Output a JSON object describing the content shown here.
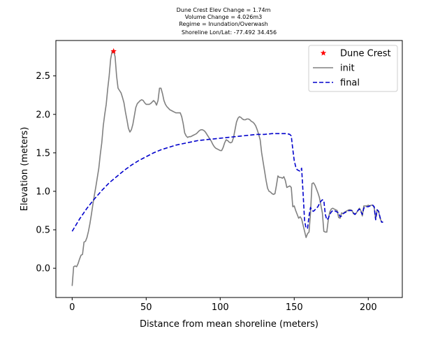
{
  "chart_data": {
    "type": "line",
    "title_lines": [
      "Dune Crest Elev Change = 1.74m",
      "Volume Change = 4.026m3",
      "Regime = Inundation/Overwash",
      "Shoreline Lon/Lat: -77.492 34.456"
    ],
    "xlabel": "Distance from mean shoreline (meters)",
    "ylabel": "Elevation (meters)",
    "xlim": [
      -11,
      223
    ],
    "ylim": [
      -0.38,
      2.96
    ],
    "x_ticks": [
      0,
      50,
      100,
      150,
      200
    ],
    "y_ticks": [
      0.0,
      0.5,
      1.0,
      1.5,
      2.0,
      2.5
    ],
    "x_tick_labels": [
      "0",
      "50",
      "100",
      "150",
      "200"
    ],
    "y_tick_labels": [
      "0.0",
      "0.5",
      "1.0",
      "1.5",
      "2.0",
      "2.5"
    ],
    "grid": false,
    "legend_position": "top-right",
    "series": [
      {
        "name": "Dune Crest",
        "style": "marker",
        "color": "#ff0000",
        "marker": "star",
        "points": [
          [
            28,
            2.82
          ]
        ]
      },
      {
        "name": "init",
        "style": "solid",
        "color": "#808080",
        "points": [
          [
            0,
            -0.23
          ],
          [
            1,
            0.02
          ],
          [
            2,
            0.03
          ],
          [
            3,
            0.02
          ],
          [
            4,
            0.06
          ],
          [
            5,
            0.12
          ],
          [
            6,
            0.17
          ],
          [
            7,
            0.18
          ],
          [
            8,
            0.34
          ],
          [
            9,
            0.35
          ],
          [
            10,
            0.4
          ],
          [
            11,
            0.48
          ],
          [
            12,
            0.58
          ],
          [
            13,
            0.7
          ],
          [
            14,
            0.83
          ],
          [
            15,
            0.95
          ],
          [
            16,
            1.06
          ],
          [
            17,
            1.18
          ],
          [
            18,
            1.3
          ],
          [
            19,
            1.48
          ],
          [
            20,
            1.63
          ],
          [
            21,
            1.85
          ],
          [
            22,
            2.0
          ],
          [
            23,
            2.13
          ],
          [
            24,
            2.33
          ],
          [
            25,
            2.5
          ],
          [
            26,
            2.72
          ],
          [
            27,
            2.82
          ],
          [
            28,
            2.82
          ],
          [
            29,
            2.75
          ],
          [
            30,
            2.5
          ],
          [
            31,
            2.34
          ],
          [
            32,
            2.31
          ],
          [
            33,
            2.28
          ],
          [
            34,
            2.22
          ],
          [
            35,
            2.15
          ],
          [
            36,
            2.03
          ],
          [
            37,
            1.93
          ],
          [
            38,
            1.82
          ],
          [
            39,
            1.77
          ],
          [
            40,
            1.8
          ],
          [
            41,
            1.87
          ],
          [
            42,
            1.98
          ],
          [
            43,
            2.09
          ],
          [
            44,
            2.14
          ],
          [
            45,
            2.16
          ],
          [
            46,
            2.18
          ],
          [
            47,
            2.19
          ],
          [
            48,
            2.18
          ],
          [
            49,
            2.15
          ],
          [
            50,
            2.13
          ],
          [
            51,
            2.13
          ],
          [
            52,
            2.13
          ],
          [
            53,
            2.14
          ],
          [
            54,
            2.16
          ],
          [
            55,
            2.18
          ],
          [
            56,
            2.16
          ],
          [
            57,
            2.12
          ],
          [
            58,
            2.18
          ],
          [
            59,
            2.34
          ],
          [
            60,
            2.34
          ],
          [
            61,
            2.27
          ],
          [
            62,
            2.18
          ],
          [
            63,
            2.13
          ],
          [
            64,
            2.1
          ],
          [
            65,
            2.08
          ],
          [
            66,
            2.06
          ],
          [
            67,
            2.05
          ],
          [
            68,
            2.04
          ],
          [
            69,
            2.03
          ],
          [
            70,
            2.02
          ],
          [
            71,
            2.02
          ],
          [
            72,
            2.02
          ],
          [
            73,
            2.02
          ],
          [
            74,
            1.97
          ],
          [
            75,
            1.88
          ],
          [
            76,
            1.76
          ],
          [
            77,
            1.72
          ],
          [
            78,
            1.7
          ],
          [
            79,
            1.71
          ],
          [
            80,
            1.71
          ],
          [
            81,
            1.72
          ],
          [
            82,
            1.73
          ],
          [
            83,
            1.74
          ],
          [
            84,
            1.75
          ],
          [
            85,
            1.77
          ],
          [
            86,
            1.79
          ],
          [
            87,
            1.8
          ],
          [
            88,
            1.8
          ],
          [
            89,
            1.79
          ],
          [
            90,
            1.77
          ],
          [
            91,
            1.74
          ],
          [
            92,
            1.71
          ],
          [
            93,
            1.68
          ],
          [
            94,
            1.65
          ],
          [
            95,
            1.61
          ],
          [
            96,
            1.58
          ],
          [
            97,
            1.56
          ],
          [
            98,
            1.55
          ],
          [
            99,
            1.54
          ],
          [
            100,
            1.53
          ],
          [
            101,
            1.53
          ],
          [
            102,
            1.57
          ],
          [
            103,
            1.63
          ],
          [
            104,
            1.67
          ],
          [
            105,
            1.66
          ],
          [
            106,
            1.64
          ],
          [
            107,
            1.63
          ],
          [
            108,
            1.64
          ],
          [
            109,
            1.7
          ],
          [
            110,
            1.8
          ],
          [
            111,
            1.9
          ],
          [
            112,
            1.95
          ],
          [
            113,
            1.97
          ],
          [
            114,
            1.96
          ],
          [
            115,
            1.94
          ],
          [
            116,
            1.93
          ],
          [
            117,
            1.93
          ],
          [
            118,
            1.94
          ],
          [
            119,
            1.94
          ],
          [
            120,
            1.93
          ],
          [
            121,
            1.91
          ],
          [
            122,
            1.9
          ],
          [
            123,
            1.88
          ],
          [
            124,
            1.85
          ],
          [
            125,
            1.8
          ],
          [
            126,
            1.74
          ],
          [
            127,
            1.67
          ],
          [
            128,
            1.5
          ],
          [
            129,
            1.38
          ],
          [
            130,
            1.26
          ],
          [
            131,
            1.14
          ],
          [
            132,
            1.04
          ],
          [
            133,
            1.0
          ],
          [
            134,
            0.99
          ],
          [
            135,
            0.97
          ],
          [
            136,
            0.96
          ],
          [
            137,
            0.97
          ],
          [
            138,
            1.08
          ],
          [
            139,
            1.2
          ],
          [
            140,
            1.18
          ],
          [
            141,
            1.18
          ],
          [
            142,
            1.17
          ],
          [
            143,
            1.19
          ],
          [
            144,
            1.14
          ],
          [
            145,
            1.05
          ],
          [
            146,
            1.06
          ],
          [
            147,
            1.07
          ],
          [
            148,
            1.05
          ],
          [
            149,
            0.8
          ],
          [
            150,
            0.81
          ],
          [
            151,
            0.75
          ],
          [
            152,
            0.7
          ],
          [
            153,
            0.65
          ],
          [
            154,
            0.67
          ],
          [
            155,
            0.64
          ],
          [
            156,
            0.56
          ],
          [
            157,
            0.48
          ],
          [
            158,
            0.4
          ],
          [
            159,
            0.45
          ],
          [
            160,
            0.47
          ],
          [
            161,
            0.72
          ],
          [
            162,
            1.1
          ],
          [
            163,
            1.11
          ],
          [
            164,
            1.08
          ],
          [
            165,
            1.03
          ],
          [
            166,
            0.98
          ],
          [
            167,
            0.92
          ],
          [
            168,
            0.82
          ],
          [
            169,
            0.72
          ],
          [
            170,
            0.48
          ],
          [
            171,
            0.47
          ],
          [
            172,
            0.47
          ],
          [
            173,
            0.63
          ],
          [
            174,
            0.73
          ],
          [
            175,
            0.77
          ],
          [
            176,
            0.78
          ],
          [
            177,
            0.77
          ],
          [
            178,
            0.76
          ],
          [
            179,
            0.75
          ],
          [
            180,
            0.66
          ],
          [
            181,
            0.65
          ],
          [
            182,
            0.72
          ],
          [
            183,
            0.71
          ],
          [
            184,
            0.73
          ],
          [
            185,
            0.74
          ],
          [
            186,
            0.75
          ],
          [
            187,
            0.76
          ],
          [
            188,
            0.76
          ],
          [
            189,
            0.75
          ],
          [
            190,
            0.71
          ],
          [
            191,
            0.7
          ],
          [
            192,
            0.72
          ],
          [
            193,
            0.75
          ],
          [
            194,
            0.78
          ],
          [
            195,
            0.75
          ],
          [
            196,
            0.68
          ],
          [
            197,
            0.81
          ],
          [
            198,
            0.81
          ],
          [
            199,
            0.81
          ],
          [
            200,
            0.82
          ],
          [
            201,
            0.81
          ],
          [
            202,
            0.82
          ],
          [
            203,
            0.82
          ],
          [
            204,
            0.79
          ],
          [
            205,
            0.64
          ],
          [
            206,
            0.76
          ],
          [
            207,
            0.74
          ],
          [
            208,
            0.65
          ],
          [
            209,
            0.6
          ],
          [
            210,
            0.6
          ]
        ]
      },
      {
        "name": "final",
        "style": "dashed",
        "color": "#0000cc",
        "points": [
          [
            0,
            0.48
          ],
          [
            5,
            0.64
          ],
          [
            10,
            0.78
          ],
          [
            15,
            0.9
          ],
          [
            20,
            1.01
          ],
          [
            25,
            1.11
          ],
          [
            30,
            1.19
          ],
          [
            35,
            1.27
          ],
          [
            40,
            1.34
          ],
          [
            45,
            1.4
          ],
          [
            50,
            1.45
          ],
          [
            55,
            1.5
          ],
          [
            60,
            1.54
          ],
          [
            65,
            1.57
          ],
          [
            70,
            1.6
          ],
          [
            75,
            1.62
          ],
          [
            80,
            1.64
          ],
          [
            85,
            1.66
          ],
          [
            90,
            1.67
          ],
          [
            95,
            1.68
          ],
          [
            100,
            1.69
          ],
          [
            105,
            1.7
          ],
          [
            110,
            1.71
          ],
          [
            115,
            1.72
          ],
          [
            120,
            1.73
          ],
          [
            125,
            1.74
          ],
          [
            130,
            1.74
          ],
          [
            135,
            1.75
          ],
          [
            140,
            1.75
          ],
          [
            145,
            1.75
          ],
          [
            147,
            1.74
          ],
          [
            148,
            1.72
          ],
          [
            149,
            1.55
          ],
          [
            150,
            1.4
          ],
          [
            151,
            1.32
          ],
          [
            152,
            1.28
          ],
          [
            153,
            1.27
          ],
          [
            154,
            1.26
          ],
          [
            155,
            1.3
          ],
          [
            156,
            0.97
          ],
          [
            157,
            0.62
          ],
          [
            158,
            0.52
          ],
          [
            159,
            0.52
          ],
          [
            160,
            0.68
          ],
          [
            161,
            0.79
          ],
          [
            162,
            0.75
          ],
          [
            163,
            0.74
          ],
          [
            164,
            0.76
          ],
          [
            165,
            0.78
          ],
          [
            166,
            0.8
          ],
          [
            167,
            0.84
          ],
          [
            168,
            0.87
          ],
          [
            169,
            0.89
          ],
          [
            170,
            0.88
          ],
          [
            171,
            0.7
          ],
          [
            172,
            0.63
          ],
          [
            173,
            0.65
          ],
          [
            174,
            0.7
          ],
          [
            175,
            0.73
          ],
          [
            176,
            0.75
          ],
          [
            177,
            0.75
          ],
          [
            178,
            0.74
          ],
          [
            179,
            0.73
          ],
          [
            180,
            0.72
          ],
          [
            181,
            0.67
          ],
          [
            182,
            0.68
          ],
          [
            183,
            0.71
          ],
          [
            184,
            0.72
          ],
          [
            185,
            0.73
          ],
          [
            186,
            0.74
          ],
          [
            187,
            0.75
          ],
          [
            188,
            0.75
          ],
          [
            189,
            0.75
          ],
          [
            190,
            0.72
          ],
          [
            191,
            0.7
          ],
          [
            192,
            0.72
          ],
          [
            193,
            0.75
          ],
          [
            194,
            0.77
          ],
          [
            195,
            0.74
          ],
          [
            196,
            0.7
          ],
          [
            197,
            0.78
          ],
          [
            198,
            0.8
          ],
          [
            199,
            0.8
          ],
          [
            200,
            0.8
          ],
          [
            201,
            0.81
          ],
          [
            202,
            0.81
          ],
          [
            203,
            0.82
          ],
          [
            204,
            0.8
          ],
          [
            205,
            0.63
          ],
          [
            206,
            0.76
          ],
          [
            207,
            0.74
          ],
          [
            208,
            0.66
          ],
          [
            209,
            0.6
          ],
          [
            210,
            0.6
          ]
        ]
      }
    ]
  }
}
